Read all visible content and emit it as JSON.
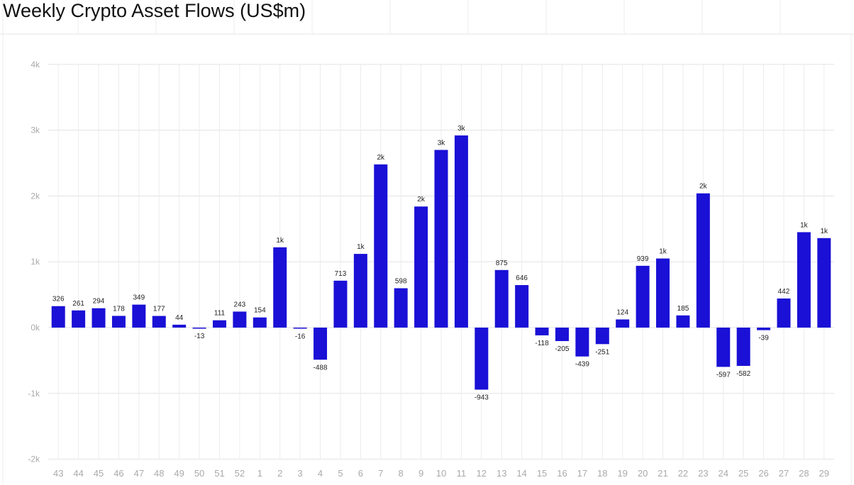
{
  "title": "Weekly Crypto Asset Flows (US$m)",
  "chart_data": {
    "type": "bar",
    "title": "Weekly Crypto Asset Flows (US$m)",
    "xlabel": "",
    "ylabel": "",
    "categories": [
      "43",
      "44",
      "45",
      "46",
      "47",
      "48",
      "49",
      "50",
      "51",
      "52",
      "1",
      "2",
      "3",
      "4",
      "5",
      "6",
      "7",
      "8",
      "9",
      "10",
      "11",
      "12",
      "13",
      "14",
      "15",
      "16",
      "17",
      "18",
      "19",
      "20",
      "21",
      "22",
      "23",
      "24",
      "25",
      "26",
      "27",
      "28",
      "29"
    ],
    "values": [
      326,
      261,
      294,
      178,
      349,
      177,
      44,
      -13,
      111,
      243,
      154,
      1220,
      -16,
      -488,
      713,
      1120,
      2480,
      598,
      1840,
      2700,
      2920,
      -943,
      875,
      646,
      -118,
      -205,
      -439,
      -251,
      124,
      939,
      1050,
      185,
      2040,
      -597,
      -582,
      -39,
      442,
      1450,
      1360
    ],
    "data_labels": [
      "326",
      "261",
      "294",
      "178",
      "349",
      "177",
      "44",
      "-13",
      "111",
      "243",
      "154",
      "1k",
      "-16",
      "-488",
      "713",
      "1k",
      "2k",
      "598",
      "2k",
      "3k",
      "3k",
      "-943",
      "875",
      "646",
      "-118",
      "-205",
      "-439",
      "-251",
      "124",
      "939",
      "1k",
      "185",
      "2k",
      "-597",
      "-582",
      "-39",
      "442",
      "1k",
      "1k"
    ],
    "ylim": [
      -2000,
      4000
    ],
    "yticks": [
      4000,
      3000,
      2000,
      1000,
      0,
      -1000,
      -2000
    ],
    "ytick_labels": [
      "4k",
      "3k",
      "2k",
      "1k",
      "0k",
      "-1k",
      "-2k"
    ],
    "grid": true,
    "legend": "none",
    "bar_color": "#1a10d6"
  }
}
